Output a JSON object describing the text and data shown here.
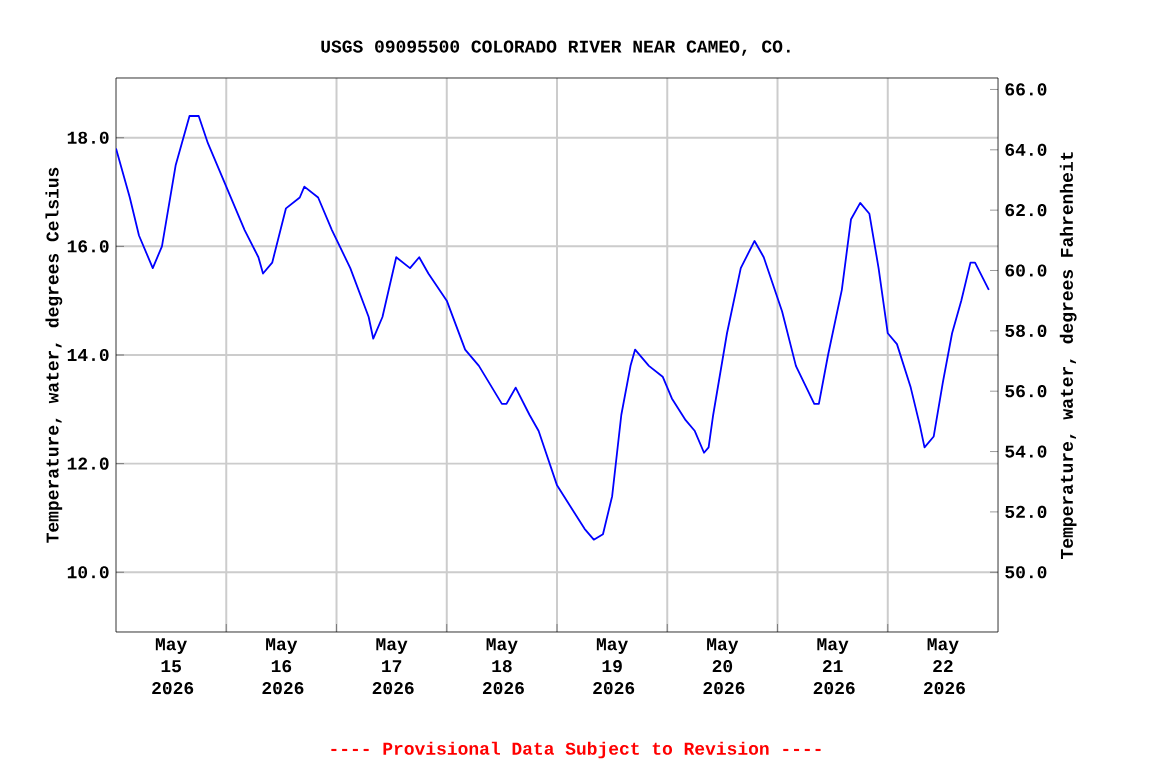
{
  "chart_data": {
    "type": "line",
    "title": "USGS 09095500 COLORADO RIVER NEAR CAMEO, CO.",
    "ylabel": "Temperature, water, degrees Celsius",
    "y2label": "Temperature, water, degrees Fahrenheit",
    "annotations": [
      "---- Provisional Data Subject to Revision ----"
    ],
    "x": [
      "2026-05-15T00:00",
      "2026-05-15T03:00",
      "2026-05-15T05:00",
      "2026-05-15T08:00",
      "2026-05-15T10:00",
      "2026-05-15T13:00",
      "2026-05-15T16:00",
      "2026-05-15T18:00",
      "2026-05-15T20:00",
      "2026-05-16T00:00",
      "2026-05-16T04:00",
      "2026-05-16T07:00",
      "2026-05-16T08:00",
      "2026-05-16T10:00",
      "2026-05-16T13:00",
      "2026-05-16T16:00",
      "2026-05-16T17:00",
      "2026-05-16T20:00",
      "2026-05-16T23:00",
      "2026-05-17T03:00",
      "2026-05-17T07:00",
      "2026-05-17T08:00",
      "2026-05-17T10:00",
      "2026-05-17T13:00",
      "2026-05-17T16:00",
      "2026-05-17T18:00",
      "2026-05-17T20:00",
      "2026-05-18T00:00",
      "2026-05-18T04:00",
      "2026-05-18T07:00",
      "2026-05-18T12:00",
      "2026-05-18T13:00",
      "2026-05-18T15:00",
      "2026-05-18T18:00",
      "2026-05-18T20:00",
      "2026-05-19T00:00",
      "2026-05-19T03:00",
      "2026-05-19T06:00",
      "2026-05-19T08:00",
      "2026-05-19T10:00",
      "2026-05-19T12:00",
      "2026-05-19T14:00",
      "2026-05-19T16:00",
      "2026-05-19T17:00",
      "2026-05-19T20:00",
      "2026-05-19T23:00",
      "2026-05-20T01:00",
      "2026-05-20T04:00",
      "2026-05-20T06:00",
      "2026-05-20T08:00",
      "2026-05-20T09:00",
      "2026-05-20T10:00",
      "2026-05-20T13:00",
      "2026-05-20T16:00",
      "2026-05-20T19:00",
      "2026-05-20T21:00",
      "2026-05-21T01:00",
      "2026-05-21T04:00",
      "2026-05-21T08:00",
      "2026-05-21T09:00",
      "2026-05-21T11:00",
      "2026-05-21T14:00",
      "2026-05-21T16:00",
      "2026-05-21T18:00",
      "2026-05-21T20:00",
      "2026-05-21T22:00",
      "2026-05-22T00:00",
      "2026-05-22T02:00",
      "2026-05-22T05:00",
      "2026-05-22T07:00",
      "2026-05-22T08:00",
      "2026-05-22T10:00",
      "2026-05-22T12:00",
      "2026-05-22T14:00",
      "2026-05-22T16:00",
      "2026-05-22T18:00",
      "2026-05-22T19:00",
      "2026-05-22T22:00"
    ],
    "series": [
      {
        "color": "#0000ff",
        "values": [
          17.8,
          16.9,
          16.2,
          15.6,
          16.0,
          17.5,
          18.4,
          18.4,
          17.9,
          17.1,
          16.3,
          15.8,
          15.5,
          15.7,
          16.7,
          16.9,
          17.1,
          16.9,
          16.3,
          15.6,
          14.7,
          14.3,
          14.7,
          15.8,
          15.6,
          15.8,
          15.5,
          15.0,
          14.1,
          13.8,
          13.1,
          13.1,
          13.4,
          12.9,
          12.6,
          11.6,
          11.2,
          10.8,
          10.6,
          10.7,
          11.4,
          12.9,
          13.8,
          14.1,
          13.8,
          13.6,
          13.2,
          12.8,
          12.6,
          12.2,
          12.3,
          12.9,
          14.4,
          15.6,
          16.1,
          15.8,
          14.8,
          13.8,
          13.1,
          13.1,
          14.0,
          15.2,
          16.5,
          16.8,
          16.6,
          15.6,
          14.4,
          14.2,
          13.4,
          12.7,
          12.3,
          12.5,
          13.5,
          14.4,
          15.0,
          15.7,
          15.7,
          15.2
        ]
      }
    ],
    "xlim": [
      "2026-05-15T00:00",
      "2026-05-23T00:00"
    ],
    "xticks": [
      {
        "value": "2026-05-15T12:00",
        "label": "May 15 2026"
      },
      {
        "value": "2026-05-16T12:00",
        "label": "May 16 2026"
      },
      {
        "value": "2026-05-17T12:00",
        "label": "May 17 2026"
      },
      {
        "value": "2026-05-18T12:00",
        "label": "May 18 2026"
      },
      {
        "value": "2026-05-19T12:00",
        "label": "May 19 2026"
      },
      {
        "value": "2026-05-20T12:00",
        "label": "May 20 2026"
      },
      {
        "value": "2026-05-21T12:00",
        "label": "May 21 2026"
      },
      {
        "value": "2026-05-22T12:00",
        "label": "May 22 2026"
      },
      {
        "value": "2026-05-16T00:00",
        "label": null
      },
      {
        "value": "2026-05-17T00:00",
        "label": null
      },
      {
        "value": "2026-05-18T00:00",
        "label": null
      },
      {
        "value": "2026-05-19T00:00",
        "label": null
      },
      {
        "value": "2026-05-20T00:00",
        "label": null
      },
      {
        "value": "2026-05-21T00:00",
        "label": null
      },
      {
        "value": "2026-05-22T00:00",
        "label": null
      }
    ],
    "ylim": [
      8.9,
      19.1
    ],
    "yticks": [
      {
        "value": 10,
        "label": "10.0"
      },
      {
        "value": 12,
        "label": "12.0"
      },
      {
        "value": 14,
        "label": "14.0"
      },
      {
        "value": 16,
        "label": "16.0"
      },
      {
        "value": 18,
        "label": "18.0"
      }
    ],
    "y2lim": [
      48.02,
      66.38
    ],
    "y2ticks": [
      {
        "value": 50,
        "label": "50.0"
      },
      {
        "value": 52,
        "label": "52.0"
      },
      {
        "value": 54,
        "label": "54.0"
      },
      {
        "value": 56,
        "label": "56.0"
      },
      {
        "value": 58,
        "label": "58.0"
      },
      {
        "value": 60,
        "label": "60.0"
      },
      {
        "value": 62,
        "label": "62.0"
      },
      {
        "value": 64,
        "label": "64.0"
      },
      {
        "value": 66,
        "label": "66.0"
      }
    ],
    "grid": true
  }
}
